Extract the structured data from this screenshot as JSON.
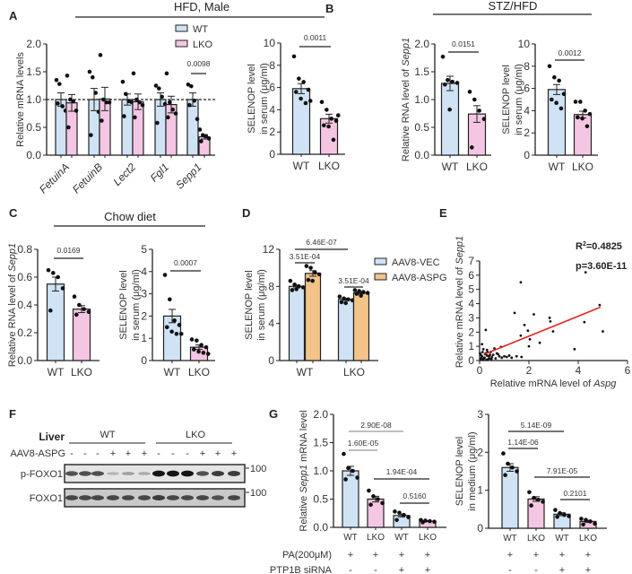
{
  "figure": {
    "panel_labels": {
      "A": "A",
      "B": "B",
      "C": "C",
      "D": "D",
      "E": "E",
      "F": "F",
      "G": "G"
    },
    "titles": {
      "A": "HFD, Male",
      "B": "STZ/HFD",
      "C": "Chow diet"
    },
    "legend_A": [
      {
        "label": "WT",
        "color": "#cfe3f5"
      },
      {
        "label": "LKO",
        "color": "#f5c6e4"
      }
    ],
    "legend_D": [
      {
        "label": "AAV8-VEC",
        "color": "#cfe3f5"
      },
      {
        "label": "AAV8-ASPG",
        "color": "#f2c48a"
      }
    ],
    "treatment_rows_G": {
      "pa_label": "PA(200μM)",
      "sirna_label": "PTP1B siRNA",
      "pa": [
        "+",
        "+",
        "+",
        "+"
      ],
      "sirna": [
        "-",
        "-",
        "+",
        "+"
      ]
    }
  },
  "colors": {
    "WT": "#cfe3f5",
    "LKO": "#f5c6e4",
    "ASPG": "#f2c48a",
    "fit": "#e8231f"
  },
  "chart_data": [
    {
      "id": "A1",
      "type": "bar",
      "ylabel": [
        "Relative mRNA levels"
      ],
      "ylim": [
        0,
        2
      ],
      "yticks": [
        0,
        0.5,
        1,
        1.5,
        2
      ],
      "ytick_labels": [
        "0.0",
        "0.5",
        "1.0",
        "1.5",
        "2.0"
      ],
      "reference_line": 1.0,
      "xtick_italic": true,
      "xtick_rotated": true,
      "categories": [
        "FetuinA",
        "FetuinB",
        "Lect2",
        "Fgl1",
        "Sepp1"
      ],
      "bars": [
        {
          "cat": "FetuinA",
          "series": "WT",
          "value": 1.0,
          "sem": 0.12,
          "points": [
            1.35,
            1.28,
            0.88,
            0.8,
            0.93
          ]
        },
        {
          "cat": "FetuinA",
          "series": "LKO",
          "value": 0.94,
          "sem": 0.15,
          "points": [
            1.43,
            1.0,
            0.97,
            0.8,
            0.5
          ]
        },
        {
          "cat": "FetuinB",
          "series": "WT",
          "value": 1.0,
          "sem": 0.2,
          "points": [
            1.5,
            1.4,
            1.12,
            0.78,
            0.36
          ]
        },
        {
          "cat": "FetuinB",
          "series": "LKO",
          "value": 1.01,
          "sem": 0.21,
          "points": [
            1.8,
            1.0,
            0.95,
            0.95,
            0.62
          ]
        },
        {
          "cat": "Lect2",
          "series": "WT",
          "value": 1.0,
          "sem": 0.1,
          "points": [
            1.32,
            1.1,
            0.97,
            0.95,
            0.7
          ]
        },
        {
          "cat": "Lect2",
          "series": "LKO",
          "value": 0.96,
          "sem": 0.14,
          "points": [
            1.47,
            1.0,
            0.95,
            0.9,
            0.68
          ]
        },
        {
          "cat": "Fgl1",
          "series": "WT",
          "value": 1.0,
          "sem": 0.12,
          "points": [
            1.25,
            1.2,
            1.05,
            0.92,
            0.58
          ]
        },
        {
          "cat": "Fgl1",
          "series": "LKO",
          "value": 0.91,
          "sem": 0.15,
          "points": [
            1.47,
            0.95,
            0.82,
            0.75,
            0.68
          ]
        },
        {
          "cat": "Sepp1",
          "series": "WT",
          "value": 1.0,
          "sem": 0.12,
          "points": [
            1.27,
            1.24,
            0.98,
            0.65,
            0.9
          ]
        },
        {
          "cat": "Sepp1",
          "series": "LKO",
          "value": 0.33,
          "sem": 0.04,
          "points": [
            0.46,
            0.36,
            0.34,
            0.3,
            0.25
          ]
        }
      ],
      "annotations": [
        {
          "text": "0.0098",
          "between": [
            8,
            9
          ]
        }
      ]
    },
    {
      "id": "A2",
      "type": "bar",
      "ylabel": [
        "SELENOP level",
        "in serum (μg/ml)"
      ],
      "ylim": [
        0,
        10
      ],
      "yticks": [
        0,
        2,
        4,
        6,
        8,
        10
      ],
      "ytick_labels": [
        "0",
        "2",
        "4",
        "6",
        "8",
        "10"
      ],
      "categories": [
        "WT",
        "LKO"
      ],
      "bars": [
        {
          "cat": "WT",
          "series": "WT",
          "value": 5.9,
          "sem": 0.45,
          "points": [
            8.8,
            6.8,
            6.5,
            5.8,
            5.6,
            5.0,
            4.6,
            4.8
          ]
        },
        {
          "cat": "LKO",
          "series": "LKO",
          "value": 3.2,
          "sem": 0.4,
          "points": [
            4.7,
            4.0,
            3.2,
            3.0,
            2.6,
            2.5,
            1.3,
            3.5
          ]
        }
      ],
      "annotations": [
        {
          "text": "0.0011",
          "between": [
            0,
            1
          ]
        }
      ]
    },
    {
      "id": "B1",
      "type": "bar",
      "ylabel": [
        "Relative RNA level of |Sepp1|"
      ],
      "ylim": [
        0,
        2
      ],
      "yticks": [
        0,
        0.5,
        1,
        1.5,
        2
      ],
      "ytick_labels": [
        "0.0",
        "0.5",
        "1.0",
        "1.5",
        "2.0"
      ],
      "categories": [
        "WT",
        "LKO"
      ],
      "bars": [
        {
          "cat": "WT",
          "series": "WT",
          "value": 1.29,
          "sem": 0.13,
          "points": [
            1.77,
            1.35,
            1.32,
            1.3,
            1.27,
            0.82
          ]
        },
        {
          "cat": "LKO",
          "series": "LKO",
          "value": 0.74,
          "sem": 0.15,
          "points": [
            1.14,
            1.0,
            0.8,
            0.65,
            0.14
          ]
        }
      ],
      "annotations": [
        {
          "text": "0.0151",
          "between": [
            0,
            1
          ]
        }
      ]
    },
    {
      "id": "B2",
      "type": "bar",
      "ylabel": [
        "SELENOP level",
        "in serum (μg/ml)"
      ],
      "ylim": [
        0,
        10
      ],
      "yticks": [
        0,
        2,
        4,
        6,
        8,
        10
      ],
      "ytick_labels": [
        "0",
        "2",
        "4",
        "6",
        "8",
        "10"
      ],
      "categories": [
        "WT",
        "LKO"
      ],
      "bars": [
        {
          "cat": "WT",
          "series": "WT",
          "value": 5.9,
          "sem": 0.45,
          "points": [
            8.0,
            7.0,
            6.7,
            5.5,
            5.0,
            4.7,
            4.2
          ]
        },
        {
          "cat": "LKO",
          "series": "LKO",
          "value": 3.65,
          "sem": 0.3,
          "points": [
            4.8,
            4.8,
            4.0,
            3.7,
            3.4,
            3.3,
            2.6
          ]
        }
      ],
      "annotations": [
        {
          "text": "0.0012",
          "between": [
            0,
            1
          ]
        }
      ]
    },
    {
      "id": "C1",
      "type": "bar",
      "ylabel": [
        "Relative RNA level of |Sepp1|"
      ],
      "ylim": [
        0,
        0.8
      ],
      "yticks": [
        0,
        0.2,
        0.4,
        0.6,
        0.8
      ],
      "ytick_labels": [
        "0.0",
        "0.2",
        "0.4",
        "0.6",
        "0.8"
      ],
      "categories": [
        "WT",
        "LKO"
      ],
      "bars": [
        {
          "cat": "WT",
          "series": "WT",
          "value": 0.55,
          "sem": 0.05,
          "points": [
            0.65,
            0.63,
            0.6,
            0.52,
            0.36
          ]
        },
        {
          "cat": "LKO",
          "series": "LKO",
          "value": 0.37,
          "sem": 0.025,
          "points": [
            0.46,
            0.4,
            0.37,
            0.35,
            0.33
          ]
        }
      ],
      "annotations": [
        {
          "text": "0.0169",
          "between": [
            0,
            1
          ]
        }
      ]
    },
    {
      "id": "C2",
      "type": "bar",
      "ylabel": [
        "SELENOP level",
        "in serum (μg/ml)"
      ],
      "ylim": [
        0,
        5
      ],
      "yticks": [
        0,
        1,
        2,
        3,
        4,
        5
      ],
      "ytick_labels": [
        "0",
        "1",
        "2",
        "3",
        "4",
        "5"
      ],
      "categories": [
        "WT",
        "LKO"
      ],
      "bars": [
        {
          "cat": "WT",
          "series": "WT",
          "value": 2.0,
          "sem": 0.3,
          "points": [
            3.85,
            2.75,
            1.8,
            1.6,
            1.5,
            1.3,
            1.2,
            1.2
          ]
        },
        {
          "cat": "LKO",
          "series": "LKO",
          "value": 0.6,
          "sem": 0.1,
          "points": [
            0.95,
            0.9,
            0.7,
            0.6,
            0.5,
            0.4,
            0.35,
            0.3
          ]
        }
      ],
      "annotations": [
        {
          "text": "0.0007",
          "between": [
            0,
            1
          ]
        }
      ]
    },
    {
      "id": "D",
      "type": "bar",
      "ylabel": [
        "SELENOP level",
        "in serum (μg/ml)"
      ],
      "ylim": [
        0,
        12
      ],
      "yticks": [
        0,
        4,
        8,
        12
      ],
      "ytick_labels": [
        "0",
        "4",
        "8",
        "12"
      ],
      "categories": [
        "WT",
        "LKO"
      ],
      "bars": [
        {
          "cat": "WT",
          "series": "AAV8-VEC",
          "value": 8.0,
          "sem": 0.15,
          "points": [
            8.6,
            8.2,
            8.0,
            7.9,
            7.6,
            7.7
          ]
        },
        {
          "cat": "WT",
          "series": "AAV8-ASPG",
          "value": 9.4,
          "sem": 0.3,
          "points": [
            10.2,
            10.0,
            9.5,
            9.3,
            8.7,
            8.6
          ]
        },
        {
          "cat": "LKO",
          "series": "AAV8-VEC",
          "value": 6.6,
          "sem": 0.1,
          "points": [
            6.9,
            6.7,
            6.6,
            6.5,
            6.3,
            6.2
          ]
        },
        {
          "cat": "LKO",
          "series": "AAV8-ASPG",
          "value": 7.3,
          "sem": 0.1,
          "points": [
            7.6,
            7.5,
            7.4,
            7.3,
            7.2,
            7.0
          ]
        }
      ],
      "annotations": [
        {
          "text": "6.46E-07",
          "between": [
            0,
            2
          ]
        },
        {
          "text": "3.51E-04",
          "between": [
            0,
            1
          ]
        },
        {
          "text": "3.51E-04",
          "between": [
            2,
            3
          ]
        }
      ]
    },
    {
      "id": "E",
      "type": "scatter",
      "xlabel": "Relative mRNA level of |Aspg|",
      "ylabel": "Relative mRNA level  of |Sepp1|",
      "xlim": [
        0,
        6
      ],
      "ylim": [
        0,
        7
      ],
      "xticks": [
        0,
        2,
        4,
        6
      ],
      "yticks": [
        0,
        1,
        2,
        3,
        4,
        5,
        6,
        7
      ],
      "stats": {
        "r2_prefix": "R",
        "r2_sup": "2",
        "r2_value": "=0.4825",
        "p": "p=3.60E-11"
      },
      "fit": {
        "x": [
          0.2,
          4.9
        ],
        "y": [
          0.45,
          3.75
        ]
      },
      "points": [
        [
          1.67,
          5.5
        ],
        [
          4.3,
          6.2
        ],
        [
          1.42,
          3.35
        ],
        [
          2.2,
          3.25
        ],
        [
          2.84,
          3.0
        ],
        [
          2.87,
          2.75
        ],
        [
          1.82,
          2.5
        ],
        [
          1.96,
          2.1
        ],
        [
          2.98,
          2.05
        ],
        [
          4.25,
          2.7
        ],
        [
          4.87,
          3.9
        ],
        [
          5.0,
          2.05
        ],
        [
          0.25,
          2.15
        ],
        [
          1.67,
          1.75
        ],
        [
          2.04,
          1.5
        ],
        [
          2.44,
          1.25
        ],
        [
          2.0,
          1.0
        ],
        [
          3.85,
          0.8
        ],
        [
          0.87,
          0.95
        ],
        [
          0.1,
          1.15
        ],
        [
          0.15,
          0.8
        ],
        [
          0.3,
          0.75
        ],
        [
          0.45,
          0.6
        ],
        [
          0.6,
          0.85
        ],
        [
          0.7,
          0.5
        ],
        [
          0.05,
          0.4
        ],
        [
          0.1,
          0.3
        ],
        [
          0.2,
          0.2
        ],
        [
          0.3,
          0.35
        ],
        [
          0.4,
          0.15
        ],
        [
          0.5,
          0.25
        ],
        [
          0.05,
          0.1
        ],
        [
          0.15,
          0.05
        ],
        [
          0.25,
          0.5
        ],
        [
          0.35,
          0.1
        ],
        [
          0.55,
          0.4
        ],
        [
          0.8,
          0.3
        ],
        [
          0.9,
          0.2
        ],
        [
          1.0,
          0.3
        ],
        [
          1.1,
          0.25
        ],
        [
          1.3,
          0.2
        ],
        [
          1.5,
          0.3
        ],
        [
          1.7,
          0.25
        ],
        [
          0.12,
          0.6
        ],
        [
          0.22,
          0.45
        ],
        [
          0.08,
          0.2
        ],
        [
          0.18,
          0.15
        ],
        [
          0.28,
          0.05
        ],
        [
          0.38,
          0.3
        ],
        [
          0.48,
          0.1
        ],
        [
          0.65,
          0.15
        ],
        [
          0.75,
          0.45
        ],
        [
          0.02,
          0.5
        ],
        [
          0.32,
          0.6
        ],
        [
          0.42,
          0.4
        ],
        [
          1.2,
          0.35
        ]
      ]
    },
    {
      "id": "G1",
      "type": "bar",
      "ylabel": [
        "Relative |Sepp1| mRNA level"
      ],
      "ylim": [
        0,
        2
      ],
      "yticks": [
        0,
        0.5,
        1,
        1.5,
        2
      ],
      "ytick_labels": [
        "0.0",
        "0.5",
        "1.0",
        "1.5",
        "2.0"
      ],
      "categories": [
        "WT",
        "LKO",
        "WT",
        "LKO"
      ],
      "small_xticks": true,
      "bars": [
        {
          "cat": "WT",
          "series": "WT",
          "value": 1.0,
          "sem": 0.08,
          "points": [
            1.3,
            1.05,
            1.0,
            0.88,
            0.85
          ]
        },
        {
          "cat": "LKO",
          "series": "LKO",
          "value": 0.5,
          "sem": 0.05,
          "points": [
            0.65,
            0.55,
            0.5,
            0.43,
            0.4
          ]
        },
        {
          "cat": "WT",
          "series": "WT",
          "value": 0.21,
          "sem": 0.025,
          "points": [
            0.28,
            0.26,
            0.22,
            0.18,
            0.13
          ]
        },
        {
          "cat": "LKO",
          "series": "LKO",
          "value": 0.11,
          "sem": 0.01,
          "points": [
            0.13,
            0.12,
            0.11,
            0.1,
            0.09
          ]
        }
      ],
      "annotations": [
        {
          "text": "2.90E-08",
          "between": [
            0,
            2
          ]
        },
        {
          "text": "1.60E-05",
          "between": [
            0,
            1
          ]
        },
        {
          "text": "1.94E-04",
          "between": [
            1,
            3
          ]
        },
        {
          "text": "0.5160",
          "between": [
            2,
            3
          ]
        }
      ]
    },
    {
      "id": "G2",
      "type": "bar",
      "ylabel": [
        "SELENOP level",
        "in medium (μg/ml)"
      ],
      "ylim": [
        0,
        3
      ],
      "yticks": [
        0,
        1,
        2,
        3
      ],
      "ytick_labels": [
        "0",
        "1",
        "2",
        "3"
      ],
      "categories": [
        "WT",
        "LKO",
        "WT",
        "LKO"
      ],
      "small_xticks": true,
      "bars": [
        {
          "cat": "WT",
          "series": "WT",
          "value": 1.6,
          "sem": 0.1,
          "points": [
            1.97,
            1.7,
            1.6,
            1.5,
            1.4
          ]
        },
        {
          "cat": "LKO",
          "series": "LKO",
          "value": 0.77,
          "sem": 0.06,
          "points": [
            0.95,
            0.8,
            0.75,
            0.7,
            0.6
          ]
        },
        {
          "cat": "WT",
          "series": "WT",
          "value": 0.37,
          "sem": 0.04,
          "points": [
            0.48,
            0.4,
            0.35,
            0.32,
            0.3
          ]
        },
        {
          "cat": "LKO",
          "series": "LKO",
          "value": 0.18,
          "sem": 0.03,
          "points": [
            0.25,
            0.22,
            0.18,
            0.12,
            0.1
          ]
        }
      ],
      "annotations": [
        {
          "text": "5.14E-09",
          "between": [
            0,
            2
          ]
        },
        {
          "text": "1.14E-06",
          "between": [
            0,
            1
          ]
        },
        {
          "text": "7.91E-05",
          "between": [
            1,
            3
          ]
        },
        {
          "text": "0.2101",
          "between": [
            2,
            3
          ]
        }
      ]
    }
  ],
  "western_blot": {
    "tissue_label": "Liver",
    "groups": [
      "WT",
      "LKO"
    ],
    "treatment_label": "AAV8-ASPG",
    "treatment": [
      "-",
      "-",
      "-",
      "+",
      "+",
      "+",
      "-",
      "-",
      "-",
      "+",
      "+",
      "+"
    ],
    "marker": "100",
    "rows": [
      {
        "label": "p-FOXO1",
        "intensity": [
          0.7,
          0.7,
          0.7,
          0.2,
          0.3,
          0.25,
          1,
          1,
          1,
          0.7,
          0.8,
          0.8
        ]
      },
      {
        "label": "FOXO1",
        "intensity": [
          0.75,
          0.75,
          0.75,
          0.75,
          0.75,
          0.75,
          0.8,
          0.75,
          0.75,
          0.75,
          0.7,
          0.75
        ]
      }
    ]
  }
}
